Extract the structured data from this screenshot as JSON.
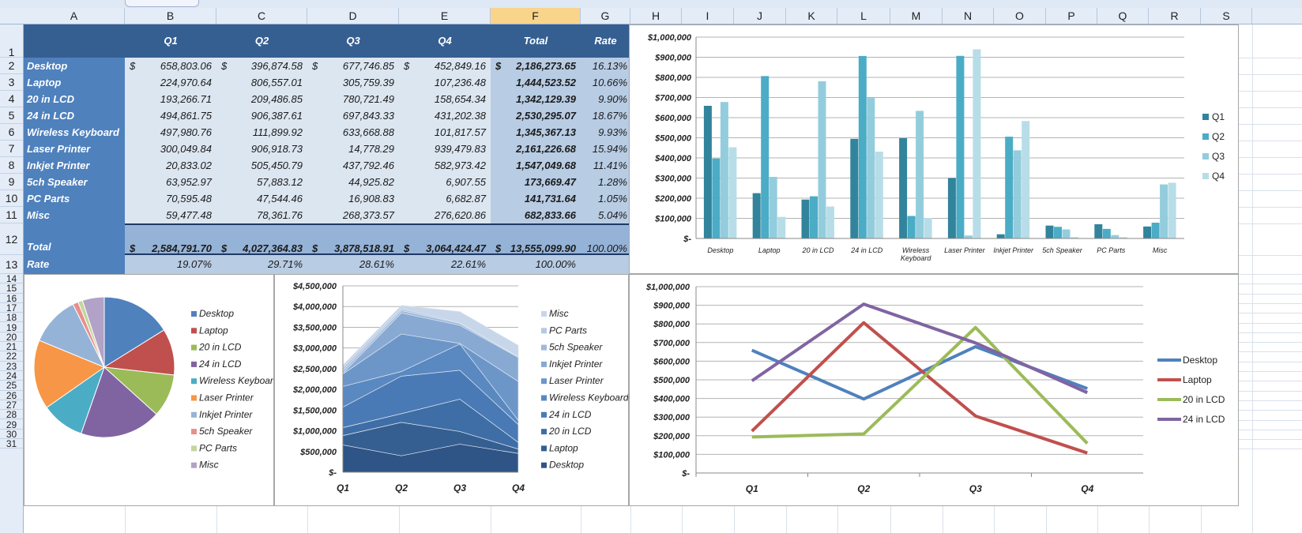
{
  "columns": [
    "A",
    "B",
    "C",
    "D",
    "E",
    "F",
    "G",
    "H",
    "I",
    "J",
    "K",
    "L",
    "M",
    "N",
    "O",
    "P",
    "Q",
    "R",
    "S"
  ],
  "selected_column": "F",
  "rows": [
    "1",
    "2",
    "3",
    "4",
    "5",
    "6",
    "7",
    "8",
    "9",
    "10",
    "11",
    "12",
    "13",
    "14",
    "15",
    "16",
    "17",
    "18",
    "19",
    "20",
    "21",
    "22",
    "23",
    "24",
    "25",
    "26",
    "27",
    "28",
    "29",
    "30",
    "31"
  ],
  "table": {
    "headers": [
      "Q1",
      "Q2",
      "Q3",
      "Q4",
      "Total",
      "Rate"
    ],
    "currency_symbol": "$",
    "rows": [
      {
        "label": "Desktop",
        "q": [
          "658,803.06",
          "396,874.58",
          "677,746.85",
          "452,849.16"
        ],
        "total": "2,186,273.65",
        "rate": "16.13%"
      },
      {
        "label": "Laptop",
        "q": [
          "224,970.64",
          "806,557.01",
          "305,759.39",
          "107,236.48"
        ],
        "total": "1,444,523.52",
        "rate": "10.66%"
      },
      {
        "label": "20 in LCD",
        "q": [
          "193,266.71",
          "209,486.85",
          "780,721.49",
          "158,654.34"
        ],
        "total": "1,342,129.39",
        "rate": "9.90%"
      },
      {
        "label": "24 in LCD",
        "q": [
          "494,861.75",
          "906,387.61",
          "697,843.33",
          "431,202.38"
        ],
        "total": "2,530,295.07",
        "rate": "18.67%"
      },
      {
        "label": "Wireless Keyboard",
        "q": [
          "497,980.76",
          "111,899.92",
          "633,668.88",
          "101,817.57"
        ],
        "total": "1,345,367.13",
        "rate": "9.93%"
      },
      {
        "label": "Laser Printer",
        "q": [
          "300,049.84",
          "906,918.73",
          "14,778.29",
          "939,479.83"
        ],
        "total": "2,161,226.68",
        "rate": "15.94%"
      },
      {
        "label": "Inkjet Printer",
        "q": [
          "20,833.02",
          "505,450.79",
          "437,792.46",
          "582,973.42"
        ],
        "total": "1,547,049.68",
        "rate": "11.41%"
      },
      {
        "label": "5ch Speaker",
        "q": [
          "63,952.97",
          "57,883.12",
          "44,925.82",
          "6,907.55"
        ],
        "total": "173,669.47",
        "rate": "1.28%"
      },
      {
        "label": "PC Parts",
        "q": [
          "70,595.48",
          "47,544.46",
          "16,908.83",
          "6,682.87"
        ],
        "total": "141,731.64",
        "rate": "1.05%"
      },
      {
        "label": "Misc",
        "q": [
          "59,477.48",
          "78,361.76",
          "268,373.57",
          "276,620.86"
        ],
        "total": "682,833.66",
        "rate": "5.04%"
      }
    ],
    "total_row": {
      "label": "Total",
      "q": [
        "2,584,791.70",
        "4,027,364.83",
        "3,878,518.91",
        "3,064,424.47"
      ],
      "total": "13,555,099.90",
      "rate": "100.00%"
    },
    "rate_row": {
      "label": "Rate",
      "q": [
        "19.07%",
        "29.71%",
        "28.61%",
        "22.61%"
      ],
      "total": "100.00%"
    }
  },
  "chart_data": [
    {
      "id": "bar",
      "type": "bar",
      "categories": [
        "Desktop",
        "Laptop",
        "20 in LCD",
        "24 in LCD",
        "Wireless Keyboard",
        "Laser Printer",
        "Inkjet Printer",
        "5ch Speaker",
        "PC Parts",
        "Misc"
      ],
      "series": [
        {
          "name": "Q1",
          "color": "#31849b",
          "values": [
            658803.06,
            224970.64,
            193266.71,
            494861.75,
            497980.76,
            300049.84,
            20833.02,
            63952.97,
            70595.48,
            59477.48
          ]
        },
        {
          "name": "Q2",
          "color": "#4bacc6",
          "values": [
            396874.58,
            806557.01,
            209486.85,
            906387.61,
            111899.92,
            906918.73,
            505450.79,
            57883.12,
            47544.46,
            78361.76
          ]
        },
        {
          "name": "Q3",
          "color": "#93cddd",
          "values": [
            677746.85,
            305759.39,
            780721.49,
            697843.33,
            633668.88,
            14778.29,
            437792.46,
            44925.82,
            16908.83,
            268373.57
          ]
        },
        {
          "name": "Q4",
          "color": "#b7dde8",
          "values": [
            452849.16,
            107236.48,
            158654.34,
            431202.38,
            101817.57,
            939479.83,
            582973.42,
            6907.55,
            6682.87,
            276620.86
          ]
        }
      ],
      "ylim": [
        0,
        1000000
      ],
      "yticks": [
        "$-",
        "$100,000",
        "$200,000",
        "$300,000",
        "$400,000",
        "$500,000",
        "$600,000",
        "$700,000",
        "$800,000",
        "$900,000",
        "$1,000,000"
      ],
      "legend": "right"
    },
    {
      "id": "pie",
      "type": "pie",
      "labels": [
        "Desktop",
        "Laptop",
        "20 in LCD",
        "24 in LCD",
        "Wireless Keyboard",
        "Laser Printer",
        "Inkjet Printer",
        "5ch Speaker",
        "PC Parts",
        "Misc"
      ],
      "values": [
        2186273.65,
        1444523.52,
        1342129.39,
        2530295.07,
        1345367.13,
        2161226.68,
        1547049.68,
        173669.47,
        141731.64,
        682833.66
      ],
      "colors": [
        "#4f81bd",
        "#c0504d",
        "#9bbb59",
        "#8064a2",
        "#4bacc6",
        "#f79646",
        "#95b3d7",
        "#e6908e",
        "#c3d69b",
        "#b2a2c7"
      ],
      "legend": "right"
    },
    {
      "id": "area",
      "type": "area",
      "categories": [
        "Q1",
        "Q2",
        "Q3",
        "Q4"
      ],
      "stacked": true,
      "series": [
        {
          "name": "Desktop",
          "color": "#2f5486",
          "values": [
            658803.06,
            396874.58,
            677746.85,
            452849.16
          ]
        },
        {
          "name": "Laptop",
          "color": "#365f91",
          "values": [
            224970.64,
            806557.01,
            305759.39,
            107236.48
          ]
        },
        {
          "name": "20 in LCD",
          "color": "#3f6ea6",
          "values": [
            193266.71,
            209486.85,
            780721.49,
            158654.34
          ]
        },
        {
          "name": "24 in LCD",
          "color": "#4a7ab5",
          "values": [
            494861.75,
            906387.61,
            697843.33,
            431202.38
          ]
        },
        {
          "name": "Wireless Keyboard",
          "color": "#5a88c0",
          "values": [
            497980.76,
            111899.92,
            633668.88,
            101817.57
          ]
        },
        {
          "name": "Laser Printer",
          "color": "#6d96c8",
          "values": [
            300049.84,
            906918.73,
            14778.29,
            939479.83
          ]
        },
        {
          "name": "Inkjet Printer",
          "color": "#88a9d2",
          "values": [
            20833.02,
            505450.79,
            437792.46,
            582973.42
          ]
        },
        {
          "name": "5ch Speaker",
          "color": "#9fb9dc",
          "values": [
            63952.97,
            57883.12,
            44925.82,
            6907.55
          ]
        },
        {
          "name": "PC Parts",
          "color": "#b5c8e3",
          "values": [
            70595.48,
            47544.46,
            16908.83,
            6682.87
          ]
        },
        {
          "name": "Misc",
          "color": "#c8d6ea",
          "values": [
            59477.48,
            78361.76,
            268373.57,
            276620.86
          ]
        }
      ],
      "ylim": [
        0,
        4500000
      ],
      "yticks": [
        "$-",
        "$500,000",
        "$1,000,000",
        "$1,500,000",
        "$2,000,000",
        "$2,500,000",
        "$3,000,000",
        "$3,500,000",
        "$4,000,000",
        "$4,500,000"
      ],
      "legend": "right"
    },
    {
      "id": "line",
      "type": "line",
      "categories": [
        "Q1",
        "Q2",
        "Q3",
        "Q4"
      ],
      "series": [
        {
          "name": "Desktop",
          "color": "#4f81bd",
          "values": [
            658803.06,
            396874.58,
            677746.85,
            452849.16
          ]
        },
        {
          "name": "Laptop",
          "color": "#c0504d",
          "values": [
            224970.64,
            806557.01,
            305759.39,
            107236.48
          ]
        },
        {
          "name": "20 in LCD",
          "color": "#9bbb59",
          "values": [
            193266.71,
            209486.85,
            780721.49,
            158654.34
          ]
        },
        {
          "name": "24 in LCD",
          "color": "#8064a2",
          "values": [
            494861.75,
            906387.61,
            697843.33,
            431202.38
          ]
        }
      ],
      "ylim": [
        0,
        1000000
      ],
      "yticks": [
        "$-",
        "$100,000",
        "$200,000",
        "$300,000",
        "$400,000",
        "$500,000",
        "$600,000",
        "$700,000",
        "$800,000",
        "$900,000",
        "$1,000,000"
      ],
      "legend": "right"
    }
  ]
}
